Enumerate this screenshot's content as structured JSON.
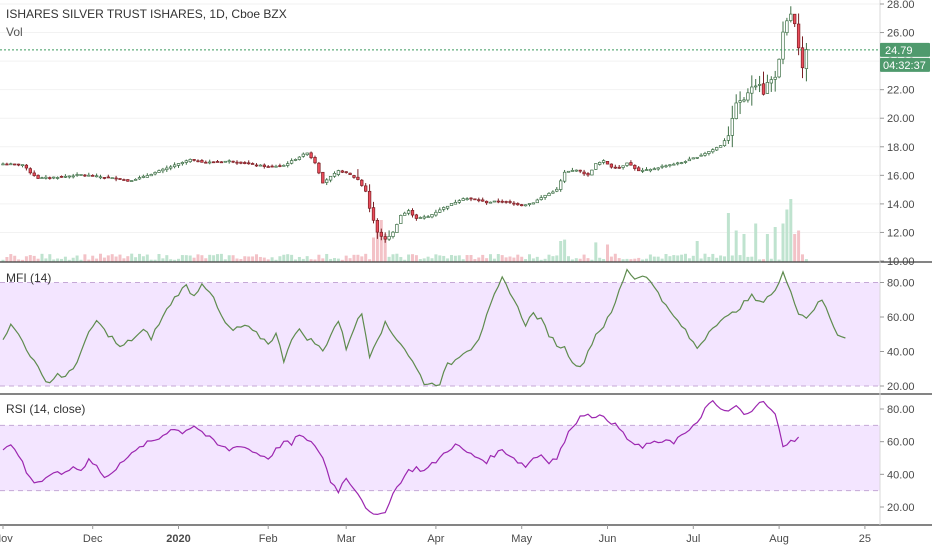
{
  "colors": {
    "up": "#53b987",
    "down": "#eb4d5c",
    "candle_body_up": "#ffffff",
    "candle_outline_up": "#3e7046",
    "candle_outline_down": "#7a1f24",
    "vol_up": "#bfe3cf",
    "vol_down": "#f3c2c7",
    "mfi_line": "#5e8b4e",
    "rsi_line": "#9c27b0",
    "band_fill": "#f3e5ff",
    "band_line": "#c5a8d6",
    "price_line": "#3c9a5f",
    "axis_text": "#4a4a4a",
    "separator": "#3a3a3a"
  },
  "chart_data": [
    {
      "type": "candlestick",
      "title": "ISHARES SILVER TRUST ISHARES, 1D, Cboe BZX",
      "subtitle": "Vol",
      "y_ticks": [
        "28.00",
        "26.00",
        "24.00",
        "22.00",
        "20.00",
        "18.00",
        "16.00",
        "14.00",
        "12.00",
        "10.00"
      ],
      "ylim": [
        10,
        28
      ],
      "last_price": "24.79",
      "countdown": "04:32:37",
      "x_ticks": [
        "Nov",
        "Dec",
        "2020",
        "Feb",
        "Mar",
        "Apr",
        "May",
        "Jun",
        "Jul",
        "Aug",
        "25"
      ],
      "close_keypoints": [
        [
          0,
          16.8
        ],
        [
          5,
          16.75
        ],
        [
          7,
          16.2
        ],
        [
          9,
          15.8
        ],
        [
          15,
          15.9
        ],
        [
          20,
          16.05
        ],
        [
          25,
          15.9
        ],
        [
          30,
          15.75
        ],
        [
          32,
          15.6
        ],
        [
          36,
          15.9
        ],
        [
          40,
          16.3
        ],
        [
          45,
          16.8
        ],
        [
          48,
          17.1
        ],
        [
          52,
          16.9
        ],
        [
          58,
          17.0
        ],
        [
          63,
          16.8
        ],
        [
          68,
          16.6
        ],
        [
          72,
          16.7
        ],
        [
          76,
          17.3
        ],
        [
          78,
          17.6
        ],
        [
          80,
          16.9
        ],
        [
          82,
          15.5
        ],
        [
          84,
          15.9
        ],
        [
          86,
          16.3
        ],
        [
          88,
          16.2
        ],
        [
          91,
          15.7
        ],
        [
          93,
          14.9
        ],
        [
          94,
          13.7
        ],
        [
          96,
          12.0
        ],
        [
          98,
          11.5
        ],
        [
          100,
          12.0
        ],
        [
          102,
          13.2
        ],
        [
          104,
          13.5
        ],
        [
          106,
          13.0
        ],
        [
          109,
          13.1
        ],
        [
          112,
          13.6
        ],
        [
          115,
          14.0
        ],
        [
          118,
          14.4
        ],
        [
          121,
          14.3
        ],
        [
          124,
          14.1
        ],
        [
          127,
          14.2
        ],
        [
          130,
          14.1
        ],
        [
          133,
          13.9
        ],
        [
          136,
          14.1
        ],
        [
          139,
          14.6
        ],
        [
          142,
          15.0
        ],
        [
          144,
          16.2
        ],
        [
          147,
          16.4
        ],
        [
          150,
          16.0
        ],
        [
          152,
          16.8
        ],
        [
          154,
          17.0
        ],
        [
          156,
          16.6
        ],
        [
          158,
          16.5
        ],
        [
          160,
          16.9
        ],
        [
          163,
          16.3
        ],
        [
          166,
          16.4
        ],
        [
          170,
          16.7
        ],
        [
          174,
          16.9
        ],
        [
          178,
          17.3
        ],
        [
          182,
          17.8
        ],
        [
          184,
          18.1
        ],
        [
          186,
          18.8
        ],
        [
          188,
          21.1
        ],
        [
          190,
          21.3
        ],
        [
          192,
          22.2
        ],
        [
          194,
          22.4
        ],
        [
          195,
          21.7
        ],
        [
          196,
          22.5
        ],
        [
          198,
          22.9
        ],
        [
          199,
          24.1
        ],
        [
          200,
          26.0
        ],
        [
          201,
          26.8
        ],
        [
          202,
          27.3
        ],
        [
          203,
          26.6
        ],
        [
          204,
          24.9
        ],
        [
          205,
          23.5
        ],
        [
          206,
          24.79
        ]
      ],
      "volume_spikes": [
        [
          95,
          0.35
        ],
        [
          96,
          0.5
        ],
        [
          97,
          0.6
        ],
        [
          98,
          0.4
        ],
        [
          143,
          0.3
        ],
        [
          144,
          0.32
        ],
        [
          152,
          0.28
        ],
        [
          155,
          0.25
        ],
        [
          178,
          0.3
        ],
        [
          186,
          0.7
        ],
        [
          188,
          0.45
        ],
        [
          190,
          0.4
        ],
        [
          193,
          0.55
        ],
        [
          196,
          0.4
        ],
        [
          198,
          0.5
        ],
        [
          200,
          0.55
        ],
        [
          201,
          0.75
        ],
        [
          202,
          0.9
        ],
        [
          203,
          0.4
        ],
        [
          204,
          0.45
        ]
      ]
    },
    {
      "type": "line",
      "title": "MFI (14)",
      "y_ticks": [
        "80.00",
        "60.00",
        "40.00",
        "20.00"
      ],
      "ylim": [
        16,
        90
      ],
      "band": [
        20,
        80
      ],
      "keypoints": [
        [
          0,
          48
        ],
        [
          2,
          55
        ],
        [
          4,
          50
        ],
        [
          7,
          38
        ],
        [
          10,
          26
        ],
        [
          12,
          22
        ],
        [
          14,
          27
        ],
        [
          16,
          25
        ],
        [
          18,
          30
        ],
        [
          20,
          40
        ],
        [
          22,
          50
        ],
        [
          24,
          58
        ],
        [
          26,
          52
        ],
        [
          28,
          48
        ],
        [
          30,
          42
        ],
        [
          33,
          47
        ],
        [
          36,
          52
        ],
        [
          38,
          48
        ],
        [
          40,
          56
        ],
        [
          43,
          68
        ],
        [
          45,
          74
        ],
        [
          47,
          78
        ],
        [
          49,
          72
        ],
        [
          51,
          80
        ],
        [
          53,
          75
        ],
        [
          55,
          65
        ],
        [
          57,
          56
        ],
        [
          59,
          52
        ],
        [
          62,
          55
        ],
        [
          65,
          50
        ],
        [
          68,
          45
        ],
        [
          70,
          50
        ],
        [
          72,
          35
        ],
        [
          74,
          48
        ],
        [
          76,
          52
        ],
        [
          78,
          48
        ],
        [
          80,
          45
        ],
        [
          82,
          40
        ],
        [
          84,
          50
        ],
        [
          86,
          58
        ],
        [
          88,
          42
        ],
        [
          90,
          54
        ],
        [
          92,
          62
        ],
        [
          94,
          38
        ],
        [
          96,
          48
        ],
        [
          98,
          56
        ],
        [
          100,
          50
        ],
        [
          102,
          45
        ],
        [
          104,
          38
        ],
        [
          106,
          30
        ],
        [
          108,
          22
        ],
        [
          110,
          21
        ],
        [
          112,
          22
        ],
        [
          114,
          32
        ],
        [
          116,
          35
        ],
        [
          118,
          40
        ],
        [
          120,
          42
        ],
        [
          122,
          48
        ],
        [
          124,
          60
        ],
        [
          126,
          72
        ],
        [
          128,
          82
        ],
        [
          130,
          75
        ],
        [
          132,
          65
        ],
        [
          134,
          56
        ],
        [
          136,
          62
        ],
        [
          138,
          58
        ],
        [
          140,
          50
        ],
        [
          142,
          44
        ],
        [
          144,
          42
        ],
        [
          146,
          35
        ],
        [
          148,
          30
        ],
        [
          150,
          40
        ],
        [
          152,
          50
        ],
        [
          154,
          55
        ],
        [
          156,
          62
        ],
        [
          158,
          75
        ],
        [
          160,
          88
        ],
        [
          162,
          82
        ],
        [
          164,
          85
        ],
        [
          166,
          80
        ],
        [
          168,
          75
        ],
        [
          170,
          66
        ],
        [
          172,
          60
        ],
        [
          174,
          55
        ],
        [
          176,
          48
        ],
        [
          178,
          42
        ],
        [
          180,
          48
        ],
        [
          182,
          55
        ],
        [
          184,
          58
        ],
        [
          186,
          60
        ],
        [
          188,
          64
        ],
        [
          190,
          68
        ],
        [
          192,
          72
        ],
        [
          194,
          68
        ],
        [
          196,
          72
        ],
        [
          198,
          75
        ],
        [
          200,
          85
        ],
        [
          202,
          76
        ],
        [
          204,
          62
        ],
        [
          206,
          60
        ],
        [
          208,
          65
        ],
        [
          210,
          70
        ],
        [
          212,
          60
        ],
        [
          214,
          50
        ],
        [
          216,
          49
        ]
      ]
    },
    {
      "type": "line",
      "title": "RSI (14, close)",
      "y_ticks": [
        "80.00",
        "60.00",
        "40.00",
        "20.00"
      ],
      "ylim": [
        10,
        90
      ],
      "band": [
        30,
        70
      ],
      "keypoints": [
        [
          0,
          55
        ],
        [
          2,
          58
        ],
        [
          4,
          52
        ],
        [
          6,
          42
        ],
        [
          8,
          35
        ],
        [
          10,
          36
        ],
        [
          12,
          38
        ],
        [
          14,
          42
        ],
        [
          16,
          40
        ],
        [
          18,
          45
        ],
        [
          20,
          42
        ],
        [
          22,
          50
        ],
        [
          24,
          45
        ],
        [
          26,
          38
        ],
        [
          28,
          40
        ],
        [
          30,
          48
        ],
        [
          33,
          52
        ],
        [
          36,
          58
        ],
        [
          40,
          62
        ],
        [
          43,
          68
        ],
        [
          46,
          66
        ],
        [
          49,
          70
        ],
        [
          52,
          64
        ],
        [
          55,
          58
        ],
        [
          58,
          55
        ],
        [
          61,
          58
        ],
        [
          64,
          54
        ],
        [
          66,
          52
        ],
        [
          68,
          50
        ],
        [
          70,
          55
        ],
        [
          72,
          60
        ],
        [
          74,
          58
        ],
        [
          76,
          65
        ],
        [
          78,
          60
        ],
        [
          80,
          58
        ],
        [
          82,
          50
        ],
        [
          84,
          36
        ],
        [
          86,
          30
        ],
        [
          88,
          38
        ],
        [
          90,
          32
        ],
        [
          92,
          25
        ],
        [
          94,
          16
        ],
        [
          96,
          14
        ],
        [
          98,
          18
        ],
        [
          100,
          28
        ],
        [
          102,
          36
        ],
        [
          104,
          42
        ],
        [
          106,
          44
        ],
        [
          108,
          42
        ],
        [
          110,
          46
        ],
        [
          112,
          50
        ],
        [
          114,
          55
        ],
        [
          116,
          58
        ],
        [
          118,
          55
        ],
        [
          120,
          52
        ],
        [
          122,
          50
        ],
        [
          124,
          48
        ],
        [
          126,
          52
        ],
        [
          128,
          55
        ],
        [
          130,
          52
        ],
        [
          132,
          48
        ],
        [
          134,
          45
        ],
        [
          136,
          50
        ],
        [
          138,
          52
        ],
        [
          140,
          48
        ],
        [
          142,
          50
        ],
        [
          144,
          60
        ],
        [
          146,
          70
        ],
        [
          148,
          75
        ],
        [
          150,
          78
        ],
        [
          152,
          74
        ],
        [
          154,
          76
        ],
        [
          156,
          72
        ],
        [
          158,
          68
        ],
        [
          160,
          62
        ],
        [
          162,
          58
        ],
        [
          164,
          56
        ],
        [
          166,
          60
        ],
        [
          168,
          58
        ],
        [
          170,
          62
        ],
        [
          172,
          60
        ],
        [
          174,
          64
        ],
        [
          176,
          66
        ],
        [
          178,
          72
        ],
        [
          180,
          80
        ],
        [
          182,
          84
        ],
        [
          184,
          80
        ],
        [
          186,
          78
        ],
        [
          188,
          82
        ],
        [
          190,
          76
        ],
        [
          192,
          80
        ],
        [
          194,
          85
        ],
        [
          196,
          82
        ],
        [
          198,
          76
        ],
        [
          200,
          58
        ],
        [
          202,
          60
        ],
        [
          204,
          63
        ]
      ]
    }
  ]
}
